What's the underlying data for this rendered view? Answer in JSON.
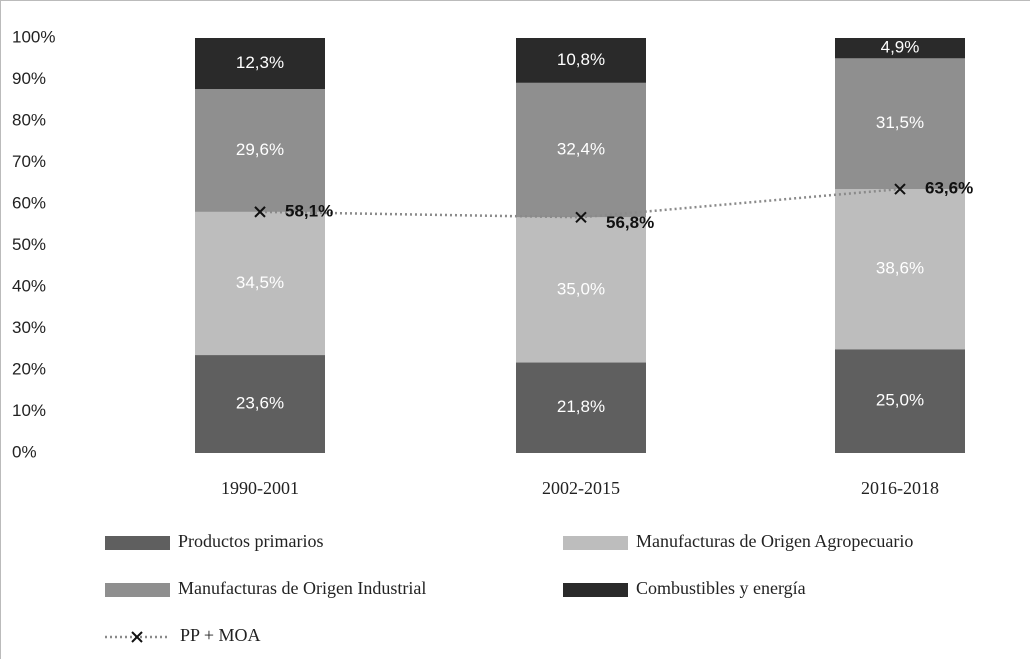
{
  "chart_data": {
    "type": "bar",
    "stacked": true,
    "categories": [
      "1990-2001",
      "2002-2015",
      "2016-2018"
    ],
    "series": [
      {
        "name": "Productos primarios",
        "color": "#5f5f5f",
        "values": [
          23.6,
          21.8,
          25.0
        ],
        "value_labels": [
          "23,6%",
          "21,8%",
          "25,0%"
        ]
      },
      {
        "name": "Manufacturas de Origen Agropecuario",
        "color": "#bdbdbd",
        "values": [
          34.5,
          35.0,
          38.6
        ],
        "value_labels": [
          "34,5%",
          "35,0%",
          "38,6%"
        ]
      },
      {
        "name": "Manufacturas de Origen Industrial",
        "color": "#8f8f8f",
        "values": [
          29.6,
          32.4,
          31.5
        ],
        "value_labels": [
          "29,6%",
          "32,4%",
          "31,5%"
        ]
      },
      {
        "name": "Combustibles y energía",
        "color": "#2a2a2a",
        "values": [
          12.3,
          10.8,
          4.9
        ],
        "value_labels": [
          "12,3%",
          "10,8%",
          "4,9%"
        ]
      },
      {
        "name": "PP + MOA",
        "type": "line",
        "color": "#8a8a8a",
        "values": [
          58.1,
          56.8,
          63.6
        ],
        "value_labels": [
          "58,1%",
          "56,8%",
          "63,6%"
        ]
      }
    ],
    "ylim": [
      0,
      100
    ],
    "yticks": [
      {
        "value": 0,
        "label": "0%"
      },
      {
        "value": 10,
        "label": "10%"
      },
      {
        "value": 20,
        "label": "20%"
      },
      {
        "value": 30,
        "label": "30%"
      },
      {
        "value": 40,
        "label": "40%"
      },
      {
        "value": 50,
        "label": "50%"
      },
      {
        "value": 60,
        "label": "60%"
      },
      {
        "value": 70,
        "label": "70%"
      },
      {
        "value": 80,
        "label": "80%"
      },
      {
        "value": 90,
        "label": "90%"
      },
      {
        "value": 100,
        "label": "100%"
      }
    ]
  }
}
